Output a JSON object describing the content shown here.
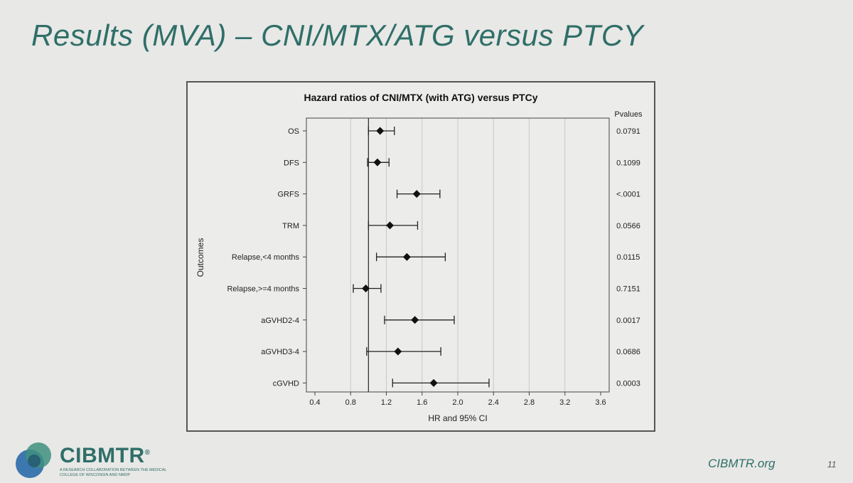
{
  "slide": {
    "title": "Results (MVA) – CNI/MTX/ATG versus PTCY",
    "footer_url": "CIBMTR.org",
    "page_number": "11"
  },
  "logo": {
    "name": "CIBMTR",
    "registered": "®",
    "tagline": "A research collaboration between the Medical College of Wisconsin and NMDP"
  },
  "chart_data": {
    "type": "forest",
    "title": "Hazard ratios of CNI/MTX (with ATG) versus PTCy",
    "xlabel": "HR and 95% CI",
    "ylabel": "Outcomes",
    "pvalue_header": "Pvalues",
    "xlim": [
      0.4,
      3.6
    ],
    "ticks": [
      "0.4",
      "0.8",
      "1.2",
      "1.6",
      "2.0",
      "2.4",
      "2.8",
      "3.2",
      "3.6"
    ],
    "reference_line": 1.0,
    "grid": true,
    "rows": [
      {
        "label": "OS",
        "hr": 1.13,
        "lo": 1.0,
        "hi": 1.29,
        "pvalue": "0.0791"
      },
      {
        "label": "DFS",
        "hr": 1.1,
        "lo": 0.99,
        "hi": 1.23,
        "pvalue": "0.1099"
      },
      {
        "label": "GRFS",
        "hr": 1.54,
        "lo": 1.32,
        "hi": 1.8,
        "pvalue": "<.0001"
      },
      {
        "label": "TRM",
        "hr": 1.24,
        "lo": 1.0,
        "hi": 1.55,
        "pvalue": "0.0566"
      },
      {
        "label": "Relapse,<4 months",
        "hr": 1.43,
        "lo": 1.09,
        "hi": 1.86,
        "pvalue": "0.0115"
      },
      {
        "label": "Relapse,>=4 months",
        "hr": 0.97,
        "lo": 0.83,
        "hi": 1.14,
        "pvalue": "0.7151"
      },
      {
        "label": "aGVHD2-4",
        "hr": 1.52,
        "lo": 1.18,
        "hi": 1.96,
        "pvalue": "0.0017"
      },
      {
        "label": "aGVHD3-4",
        "hr": 1.33,
        "lo": 0.98,
        "hi": 1.81,
        "pvalue": "0.0686"
      },
      {
        "label": "cGVHD",
        "hr": 1.73,
        "lo": 1.27,
        "hi": 2.35,
        "pvalue": "0.0003"
      }
    ]
  },
  "colors": {
    "teal": "#2f6f68",
    "frame": "#555555",
    "grid": "#c8c8c8",
    "marker": "#111111"
  }
}
